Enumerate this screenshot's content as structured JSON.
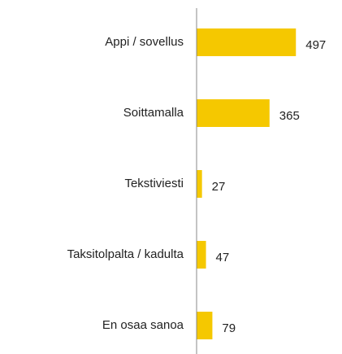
{
  "chart_data": {
    "type": "barh",
    "categories": [
      "Appi / sovellus",
      "Soittamalla",
      "Tekstiviesti",
      "Taksitolpalta / kadulta",
      "En osaa sanoa"
    ],
    "values": [
      497,
      365,
      27,
      47,
      79
    ],
    "color": "#f5c800"
  }
}
